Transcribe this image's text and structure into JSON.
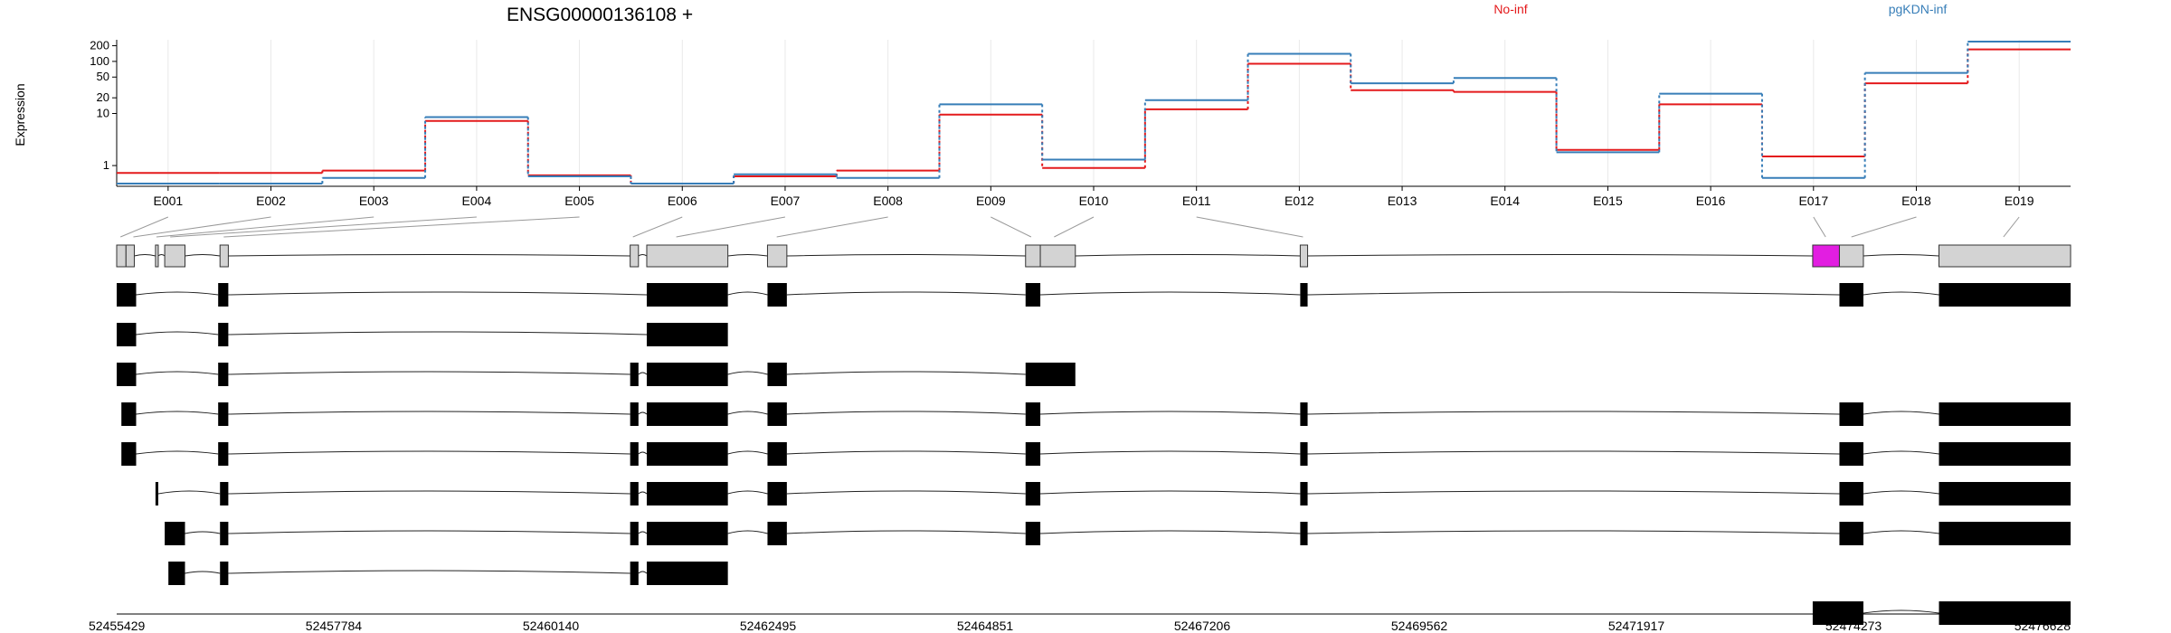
{
  "chart_data": {
    "type": "line",
    "title": "ENSG00000136108 +",
    "ylabel": "Expression",
    "yscale": "log",
    "y_ticks": [
      "1",
      "10",
      "20",
      "50",
      "100",
      "200"
    ],
    "exon_labels": [
      "E001",
      "E002",
      "E003",
      "E004",
      "E005",
      "E006",
      "E007",
      "E008",
      "E009",
      "E010",
      "E011",
      "E012",
      "E013",
      "E014",
      "E015",
      "E016",
      "E017",
      "E018",
      "E019"
    ],
    "series": [
      {
        "name": "No-inf",
        "color": "#e41a1c",
        "values": [
          0.72,
          0.72,
          0.8,
          7.2,
          0.65,
          0.45,
          0.62,
          0.8,
          9.5,
          0.9,
          12,
          90,
          28,
          26,
          2.0,
          15,
          1.5,
          38,
          170
        ]
      },
      {
        "name": "pgKDN-inf",
        "color": "#377eb8",
        "values": [
          0.45,
          0.45,
          0.58,
          8.5,
          0.62,
          0.45,
          0.68,
          0.58,
          15,
          1.3,
          18,
          140,
          38,
          48,
          1.8,
          24,
          0.58,
          60,
          240
        ]
      }
    ],
    "genomic_ticks": [
      "52455429",
      "52457784",
      "52460140",
      "52462495",
      "52464851",
      "52467206",
      "52469562",
      "52471917",
      "52474273",
      "52476628"
    ],
    "genomic_range": [
      52455429,
      52476628
    ],
    "exon_map": {
      "boxes": [
        {
          "s": 52455429,
          "e": 52455530
        },
        {
          "s": 52455530,
          "e": 52455620
        },
        {
          "s": 52455850,
          "e": 52455880
        },
        {
          "s": 52455950,
          "e": 52456170
        },
        {
          "s": 52456550,
          "e": 52456640
        },
        {
          "s": 52461000,
          "e": 52461090
        },
        {
          "s": 52461180,
          "e": 52462060
        },
        {
          "s": 52462490,
          "e": 52462700
        },
        {
          "s": 52465290,
          "e": 52465450
        },
        {
          "s": 52465450,
          "e": 52465830
        },
        {
          "s": 52468270,
          "e": 52468350
        },
        {
          "s": 52473830,
          "e": 52474120,
          "highlight": true
        },
        {
          "s": 52474120,
          "e": 52474380
        },
        {
          "s": 52475200,
          "e": 52476628
        }
      ],
      "connector_targets": [
        52455470,
        52455610,
        52455860,
        52456010,
        52456590,
        52461030,
        52461500,
        52462590,
        52465350,
        52465600,
        52468300,
        52473970,
        52474250,
        52475900
      ],
      "highlight_color": "#e21ee1"
    },
    "transcripts": [
      {
        "exons": [
          [
            52455429,
            52455640
          ],
          [
            52456530,
            52456640
          ],
          [
            52461180,
            52462060
          ],
          [
            52462490,
            52462700
          ],
          [
            52465290,
            52465450
          ],
          [
            52468270,
            52468350
          ],
          [
            52474120,
            52474380
          ],
          [
            52475200,
            52476628
          ]
        ]
      },
      {
        "exons": [
          [
            52455429,
            52455640
          ],
          [
            52456530,
            52456640
          ],
          [
            52461180,
            52462060
          ]
        ]
      },
      {
        "exons": [
          [
            52455429,
            52455640
          ],
          [
            52456530,
            52456640
          ],
          [
            52461000,
            52461090
          ],
          [
            52461180,
            52462060
          ],
          [
            52462490,
            52462700
          ],
          [
            52465290,
            52465830
          ]
        ]
      },
      {
        "exons": [
          [
            52455480,
            52455640
          ],
          [
            52456530,
            52456640
          ],
          [
            52461000,
            52461090
          ],
          [
            52461180,
            52462060
          ],
          [
            52462490,
            52462700
          ],
          [
            52465290,
            52465450
          ],
          [
            52468270,
            52468350
          ],
          [
            52474120,
            52474380
          ],
          [
            52475200,
            52476628
          ]
        ]
      },
      {
        "exons": [
          [
            52455480,
            52455640
          ],
          [
            52456530,
            52456640
          ],
          [
            52461000,
            52461090
          ],
          [
            52461180,
            52462060
          ],
          [
            52462490,
            52462700
          ],
          [
            52465290,
            52465450
          ],
          [
            52468270,
            52468350
          ],
          [
            52474120,
            52474380
          ],
          [
            52475200,
            52476628
          ]
        ]
      },
      {
        "exons": [
          [
            52455850,
            52455880
          ],
          [
            52456550,
            52456640
          ],
          [
            52461000,
            52461090
          ],
          [
            52461180,
            52462060
          ],
          [
            52462490,
            52462700
          ],
          [
            52465290,
            52465450
          ],
          [
            52468270,
            52468350
          ],
          [
            52474120,
            52474380
          ],
          [
            52475200,
            52476628
          ]
        ]
      },
      {
        "exons": [
          [
            52455950,
            52456170
          ],
          [
            52456550,
            52456640
          ],
          [
            52461000,
            52461090
          ],
          [
            52461180,
            52462060
          ],
          [
            52462490,
            52462700
          ],
          [
            52465290,
            52465450
          ],
          [
            52468270,
            52468350
          ],
          [
            52474120,
            52474380
          ],
          [
            52475200,
            52476628
          ]
        ]
      },
      {
        "exons": [
          [
            52455990,
            52456170
          ],
          [
            52456550,
            52456640
          ],
          [
            52461000,
            52461090
          ],
          [
            52461180,
            52462060
          ]
        ]
      },
      {
        "exons": [
          [
            52473830,
            52474380
          ],
          [
            52475200,
            52476628
          ]
        ]
      }
    ]
  }
}
